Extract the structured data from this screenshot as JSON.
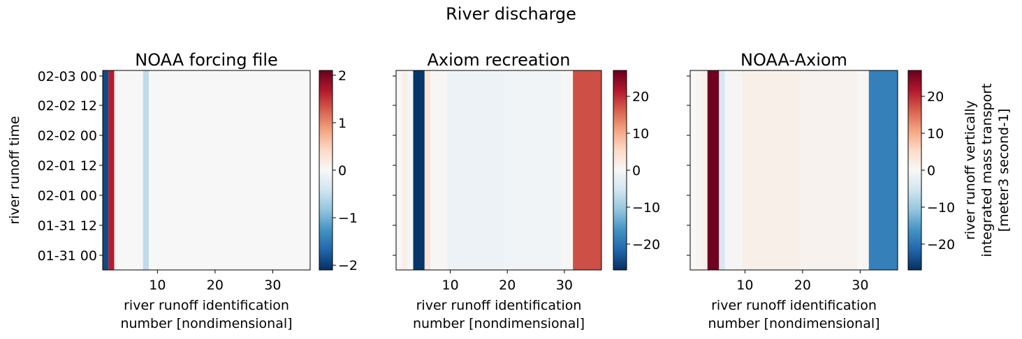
{
  "figure": {
    "title": "River discharge"
  },
  "colors": {
    "colormap": [
      "#053061",
      "#2166ac",
      "#4393c3",
      "#92c5de",
      "#d1e5f0",
      "#f7f7f7",
      "#fddbc7",
      "#f4a582",
      "#d6604d",
      "#b2182b",
      "#67001f"
    ]
  },
  "chart_data": [
    {
      "type": "heatmap",
      "title": "NOAA forcing file",
      "xlabel": "river runoff identification number [nondimensional]",
      "ylabel": "river runoff time",
      "xlim": [
        0.5,
        36.5
      ],
      "ylim": [
        "2025-01-30 12:00",
        "2025-02-03 03:00"
      ],
      "x_ticks": [
        10,
        20,
        30
      ],
      "y_ticks": [
        "01-31 00",
        "01-31 12",
        "02-01 00",
        "02-01 12",
        "02-02 00",
        "02-02 12",
        "02-03 00"
      ],
      "colorbar": {
        "vmin": -2.1,
        "vmax": 2.1,
        "ticks": [
          "−2",
          "−1",
          "0",
          "1",
          "2"
        ],
        "tick_values": [
          -2,
          -1,
          0,
          1,
          2
        ],
        "label": ""
      },
      "columns": [
        {
          "ids": [
            1
          ],
          "value": -1.9
        },
        {
          "ids": [
            2
          ],
          "value": 1.65
        },
        {
          "ids": [
            8
          ],
          "value": -0.55
        }
      ],
      "background_value": 0.0
    },
    {
      "type": "heatmap",
      "title": "Axiom recreation",
      "xlabel": "river runoff identification number [nondimensional]",
      "ylabel": "",
      "xlim": [
        0.5,
        36.5
      ],
      "x_ticks": [
        10,
        20,
        30
      ],
      "colorbar": {
        "vmin": -27,
        "vmax": 27,
        "ticks": [
          "−20",
          "−10",
          "0",
          "10",
          "20"
        ],
        "tick_values": [
          -20,
          -10,
          0,
          10,
          20
        ],
        "label": ""
      },
      "columns": [
        {
          "ids": [
            1
          ],
          "value": 0.0
        },
        {
          "ids": [
            2
          ],
          "value": 1.5
        },
        {
          "ids": [
            3
          ],
          "value": -0.3
        },
        {
          "ids": [
            4,
            5
          ],
          "value": -26.5
        },
        {
          "ids": [
            6
          ],
          "value": 3.5
        },
        {
          "ids": [
            7,
            8,
            9
          ],
          "value": 0.2
        },
        {
          "ids": [
            10,
            11,
            12,
            13,
            14,
            15,
            16,
            17,
            18,
            19
          ],
          "value": -1.5
        },
        {
          "ids": [
            20,
            21,
            22,
            23,
            24,
            25,
            26,
            27,
            28,
            29
          ],
          "value": -0.9
        },
        {
          "ids": [
            30
          ],
          "value": 0.1
        },
        {
          "ids": [
            31
          ],
          "value": 0.2
        },
        {
          "ids": [
            32,
            33,
            34,
            35,
            36
          ],
          "value": 17.5
        }
      ],
      "background_value": 0.0
    },
    {
      "type": "heatmap",
      "title": "NOAA-Axiom",
      "xlabel": "river runoff identification number [nondimensional]",
      "ylabel": "",
      "xlim": [
        0.5,
        36.5
      ],
      "x_ticks": [
        10,
        20,
        30
      ],
      "colorbar": {
        "vmin": -27,
        "vmax": 27,
        "ticks": [
          "−20",
          "−10",
          "0",
          "10",
          "20"
        ],
        "tick_values": [
          -20,
          -10,
          0,
          10,
          20
        ],
        "label": "river runoff vertically integrated mass transport [meter3 second-1]"
      },
      "columns": [
        {
          "ids": [
            1
          ],
          "value": 0.0
        },
        {
          "ids": [
            2
          ],
          "value": 0.4
        },
        {
          "ids": [
            3
          ],
          "value": 1.2
        },
        {
          "ids": [
            4,
            5
          ],
          "value": 26.5
        },
        {
          "ids": [
            6
          ],
          "value": -4.5
        },
        {
          "ids": [
            7
          ],
          "value": -0.6
        },
        {
          "ids": [
            8,
            9
          ],
          "value": 0.4
        },
        {
          "ids": [
            10,
            11,
            12,
            13,
            14,
            15,
            16,
            17,
            18,
            19
          ],
          "value": 1.6
        },
        {
          "ids": [
            20,
            21,
            22,
            23,
            24,
            25,
            26,
            27,
            28,
            29
          ],
          "value": 0.9
        },
        {
          "ids": [
            30
          ],
          "value": 0.0
        },
        {
          "ids": [
            31
          ],
          "value": 0.5
        },
        {
          "ids": [
            32,
            33,
            34,
            35,
            36
          ],
          "value": -18.5
        }
      ],
      "background_value": 0.0
    }
  ]
}
